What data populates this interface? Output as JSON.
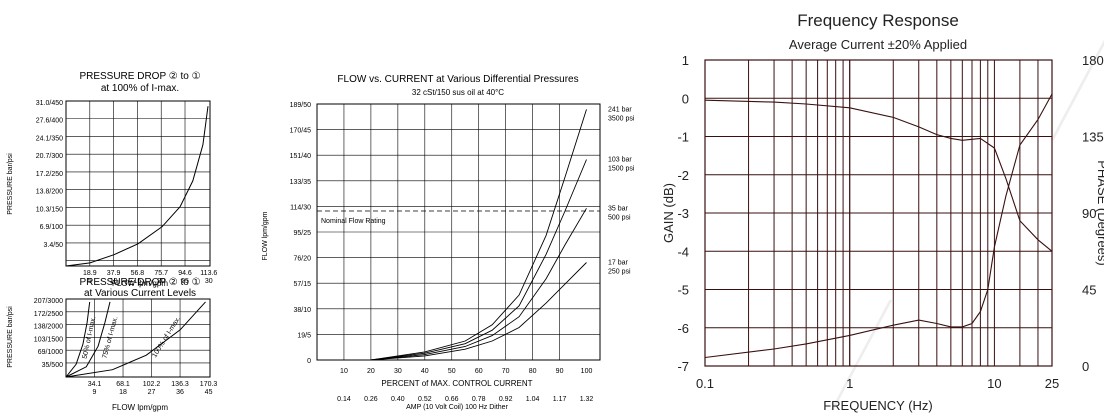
{
  "chart_data": [
    {
      "type": "line",
      "title": "PRESSURE DROP ② to ①",
      "subtitle": "at 100% of I-max.",
      "ylabel": "PRESSURE bar/psi",
      "xlabel": "FLOW lpm/gpm",
      "yticks": [
        "31.0/450",
        "27.6/400",
        "24.1/350",
        "20.7/300",
        "17.2/250",
        "13.8/200",
        "10.3/150",
        "6.9/100",
        "3.4/50"
      ],
      "xticks_lpm": [
        "18.9",
        "37.9",
        "56.8",
        "75.7",
        "94.6",
        "113.6"
      ],
      "xticks_gpm": [
        "5",
        "10",
        "15",
        "20",
        "25",
        "30"
      ],
      "ylim": [
        0,
        32
      ],
      "xlim": [
        0,
        113.6
      ],
      "series": [
        {
          "x": [
            0,
            18.9,
            37.9,
            56.8,
            75.7,
            90,
            100,
            108,
            112
          ],
          "y": [
            0,
            0.6,
            2.2,
            4.3,
            7.6,
            11.5,
            16.5,
            23.5,
            31.0
          ]
        }
      ]
    },
    {
      "type": "line",
      "title": "PRESSURE DROP ② to ①",
      "subtitle": "at Various Current Levels",
      "ylabel": "PRESSURE bar/psi",
      "xlabel": "FLOW lpm/gpm",
      "yticks": [
        "207/3000",
        "172/2500",
        "138/2000",
        "103/1500",
        "69/1000",
        "35/500"
      ],
      "xticks_lpm": [
        "34.1",
        "68.1",
        "102.2",
        "136.3",
        "170.3"
      ],
      "xticks_gpm": [
        "9",
        "18",
        "27",
        "36",
        "45"
      ],
      "ylim": [
        0,
        215
      ],
      "xlim": [
        0,
        170.3
      ],
      "annotations": [
        "50% of I-max.",
        "75% of I-max.",
        "100% of I-max."
      ],
      "series": [
        {
          "name": "50% of I-max.",
          "x": [
            0,
            12,
            20,
            25,
            28
          ],
          "y": [
            0,
            35,
            90,
            150,
            207
          ]
        },
        {
          "name": "75% of I-max.",
          "x": [
            0,
            24,
            38,
            46,
            52
          ],
          "y": [
            0,
            28,
            85,
            150,
            207
          ]
        },
        {
          "name": "100% of I-max.",
          "x": [
            0,
            55,
            95,
            135,
            165
          ],
          "y": [
            0,
            20,
            60,
            130,
            207
          ]
        }
      ]
    },
    {
      "type": "line",
      "title": "FLOW vs. CURRENT at Various Differential Pressures",
      "subtitle": "32 cSt/150 sus oil at 40°C",
      "ylabel": "FLOW lpm/gpm",
      "xlabel": "PERCENT of MAX. CONTROL CURRENT",
      "xlabel2": "AMP (10 Volt Coil) 100 Hz Dither",
      "yticks": [
        "189/50",
        "170/45",
        "151/40",
        "133/35",
        "114/30",
        "95/25",
        "76/20",
        "57/15",
        "38/10",
        "19/5",
        "0"
      ],
      "xticks": [
        "10",
        "20",
        "30",
        "40",
        "50",
        "60",
        "70",
        "80",
        "90",
        "100"
      ],
      "amp_ticks": [
        "0.14",
        "0.26",
        "0.40",
        "0.52",
        "0.66",
        "0.78",
        "0.92",
        "1.04",
        "1.17",
        "1.32"
      ],
      "ylim": [
        0,
        189
      ],
      "xlim": [
        0,
        100
      ],
      "reference_line": {
        "y": 110,
        "label": "Nominal Flow Rating"
      },
      "series": [
        {
          "name": "241 bar\n3500 psi",
          "x": [
            20,
            40,
            55,
            65,
            75,
            85,
            92,
            100
          ],
          "y": [
            0,
            6,
            14,
            26,
            48,
            92,
            135,
            185
          ]
        },
        {
          "name": "103 bar\n1500 psi",
          "x": [
            20,
            40,
            55,
            65,
            75,
            85,
            92,
            100
          ],
          "y": [
            0,
            5,
            12,
            22,
            40,
            78,
            110,
            148
          ]
        },
        {
          "name": "35 bar\n500 psi",
          "x": [
            20,
            40,
            55,
            65,
            75,
            85,
            92,
            100
          ],
          "y": [
            0,
            4,
            10,
            18,
            32,
            60,
            85,
            112
          ]
        },
        {
          "name": "17 bar\n250 psi",
          "x": [
            20,
            40,
            55,
            65,
            75,
            85,
            92,
            100
          ],
          "y": [
            0,
            3,
            8,
            14,
            24,
            42,
            56,
            72
          ]
        }
      ]
    },
    {
      "type": "line",
      "title": "Frequency Response",
      "subtitle": "Average Current ±20% Applied",
      "ylabel": "GAIN (dB)",
      "y2label": "PHASE (Degrees)",
      "xlabel": "FREQUENCY (Hz)",
      "xscale": "log",
      "xlim": [
        0.1,
        25
      ],
      "xticks": [
        "0.1",
        "1",
        "10",
        "25"
      ],
      "ylim": [
        -7,
        1
      ],
      "yticks": [
        "1",
        "0",
        "-1",
        "-2",
        "-3",
        "-4",
        "-5",
        "-6",
        "-7"
      ],
      "y2lim": [
        0,
        180
      ],
      "y2ticks": [
        "180",
        "135",
        "90",
        "45",
        "0"
      ],
      "series": [
        {
          "name": "GAIN",
          "axis": "y",
          "x": [
            0.1,
            0.3,
            0.5,
            1,
            2,
            3,
            4,
            5,
            6,
            8,
            10,
            12,
            15,
            20,
            25
          ],
          "y": [
            -0.05,
            -0.1,
            -0.15,
            -0.25,
            -0.5,
            -0.75,
            -0.95,
            -1.05,
            -1.1,
            -1.05,
            -1.3,
            -2.1,
            -3.2,
            -3.7,
            -4.0
          ]
        },
        {
          "name": "PHASE",
          "axis": "y2",
          "x": [
            0.1,
            0.3,
            0.5,
            1,
            2,
            3,
            4,
            5,
            6,
            7,
            8,
            9,
            10,
            12,
            15,
            20,
            25
          ],
          "y": [
            5,
            10,
            13,
            18,
            24,
            27,
            25,
            23,
            23,
            25,
            32,
            45,
            70,
            100,
            130,
            145,
            160
          ]
        }
      ]
    }
  ]
}
